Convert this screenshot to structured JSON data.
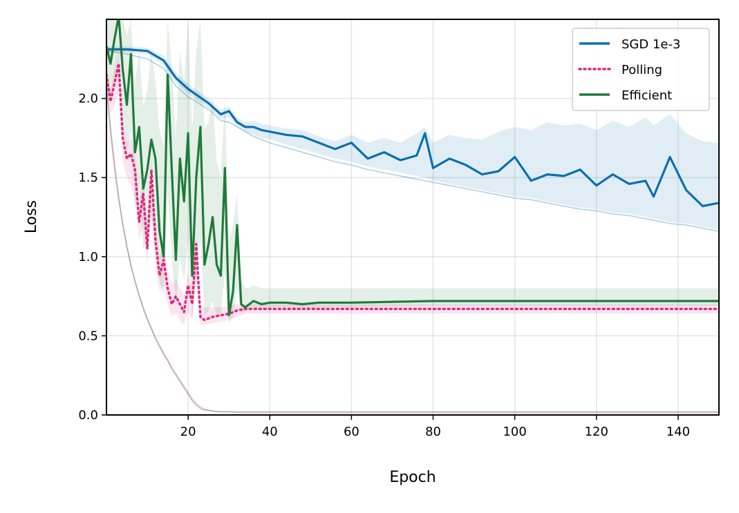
{
  "chart_data": {
    "type": "line",
    "title": "",
    "xlabel": "Epoch",
    "ylabel": "Loss",
    "xlim": [
      0,
      150
    ],
    "ylim": [
      0,
      2.5
    ],
    "xticks": [
      20,
      40,
      60,
      80,
      100,
      120,
      140
    ],
    "yticks": [
      0.0,
      0.5,
      1.0,
      1.5,
      2.0
    ],
    "xtick_labels": [
      "20",
      "40",
      "60",
      "80",
      "100",
      "120",
      "140"
    ],
    "ytick_labels": [
      "0.0",
      "0.5",
      "1.0",
      "1.5",
      "2.0"
    ],
    "grid": true,
    "legend_position": "top-right",
    "series": [
      {
        "name": "SGD 1e-3",
        "color": "#0a6fb0",
        "style": "solid",
        "x": [
          0,
          5,
          10,
          14,
          17,
          20,
          25,
          28,
          30,
          32,
          34,
          36,
          38,
          40,
          44,
          48,
          52,
          56,
          60,
          64,
          68,
          72,
          76,
          78,
          80,
          84,
          88,
          92,
          96,
          100,
          104,
          108,
          112,
          116,
          120,
          124,
          128,
          132,
          134,
          138,
          142,
          146,
          150
        ],
        "y": [
          2.31,
          2.31,
          2.3,
          2.24,
          2.13,
          2.06,
          1.97,
          1.9,
          1.92,
          1.85,
          1.82,
          1.82,
          1.8,
          1.79,
          1.77,
          1.76,
          1.72,
          1.68,
          1.72,
          1.62,
          1.66,
          1.61,
          1.64,
          1.78,
          1.56,
          1.62,
          1.58,
          1.52,
          1.54,
          1.63,
          1.48,
          1.52,
          1.51,
          1.55,
          1.45,
          1.52,
          1.46,
          1.48,
          1.38,
          1.63,
          1.42,
          1.32,
          1.34
        ],
        "band_upper": [
          2.33,
          2.33,
          2.32,
          2.27,
          2.16,
          2.09,
          2.0,
          1.93,
          1.95,
          1.88,
          1.85,
          1.86,
          1.84,
          1.83,
          1.81,
          1.8,
          1.76,
          1.73,
          1.77,
          1.72,
          1.75,
          1.72,
          1.78,
          1.82,
          1.72,
          1.77,
          1.75,
          1.74,
          1.79,
          1.82,
          1.8,
          1.85,
          1.83,
          1.84,
          1.8,
          1.86,
          1.82,
          1.88,
          1.83,
          1.9,
          1.78,
          1.73,
          1.72
        ],
        "band_lower": [
          2.29,
          2.29,
          2.28,
          2.21,
          2.1,
          2.03,
          1.94,
          1.87,
          1.88,
          1.82,
          1.79,
          1.77,
          1.75,
          1.74,
          1.71,
          1.68,
          1.65,
          1.62,
          1.6,
          1.57,
          1.55,
          1.53,
          1.51,
          1.5,
          1.48,
          1.46,
          1.44,
          1.42,
          1.4,
          1.38,
          1.37,
          1.35,
          1.33,
          1.31,
          1.3,
          1.28,
          1.27,
          1.25,
          1.24,
          1.22,
          1.21,
          1.19,
          1.17
        ],
        "lower_curve": [
          2.3,
          2.28,
          2.25,
          2.19,
          2.08,
          2.01,
          1.93,
          1.86,
          1.85,
          1.82,
          1.79,
          1.76,
          1.74,
          1.72,
          1.69,
          1.66,
          1.63,
          1.6,
          1.58,
          1.55,
          1.53,
          1.51,
          1.49,
          1.48,
          1.47,
          1.45,
          1.43,
          1.41,
          1.39,
          1.37,
          1.36,
          1.34,
          1.32,
          1.3,
          1.29,
          1.27,
          1.26,
          1.24,
          1.23,
          1.21,
          1.2,
          1.18,
          1.16
        ]
      },
      {
        "name": "Polling",
        "color": "#e0267f",
        "style": "dotted",
        "x": [
          0,
          1,
          2,
          3,
          4,
          5,
          6,
          7,
          8,
          9,
          10,
          11,
          12,
          13,
          14,
          15,
          16,
          17,
          18,
          19,
          20,
          21,
          22,
          23,
          24,
          26,
          28,
          30,
          32,
          34,
          36,
          40,
          50,
          60,
          80,
          100,
          120,
          150
        ],
        "y": [
          2.15,
          1.98,
          2.1,
          2.22,
          1.75,
          1.62,
          1.65,
          1.55,
          1.22,
          1.4,
          1.05,
          1.55,
          1.1,
          0.88,
          0.98,
          0.8,
          0.7,
          0.75,
          0.7,
          0.65,
          0.82,
          0.7,
          1.08,
          0.62,
          0.6,
          0.62,
          0.63,
          0.64,
          0.66,
          0.67,
          0.67,
          0.67,
          0.67,
          0.67,
          0.67,
          0.67,
          0.67,
          0.67
        ],
        "band_upper": [
          2.2,
          2.05,
          2.2,
          2.3,
          1.85,
          1.72,
          1.75,
          1.65,
          1.35,
          1.5,
          1.2,
          1.62,
          1.25,
          1.0,
          1.08,
          0.92,
          0.82,
          0.86,
          0.8,
          0.76,
          0.9,
          0.8,
          1.12,
          0.7,
          0.68,
          0.68,
          0.68,
          0.69,
          0.7,
          0.7,
          0.7,
          0.7,
          0.7,
          0.7,
          0.7,
          0.7,
          0.7,
          0.7
        ],
        "band_lower": [
          2.05,
          1.9,
          1.95,
          2.05,
          1.6,
          1.5,
          1.45,
          1.35,
          1.1,
          1.2,
          0.95,
          1.3,
          0.95,
          0.78,
          0.82,
          0.7,
          0.62,
          0.64,
          0.6,
          0.57,
          0.65,
          0.6,
          0.85,
          0.57,
          0.57,
          0.58,
          0.59,
          0.6,
          0.62,
          0.64,
          0.64,
          0.64,
          0.64,
          0.64,
          0.64,
          0.64,
          0.64,
          0.64
        ],
        "lower_curve": [
          2.05,
          1.78,
          1.55,
          1.36,
          1.2,
          1.06,
          0.94,
          0.84,
          0.75,
          0.67,
          0.6,
          0.54,
          0.48,
          0.43,
          0.38,
          0.34,
          0.29,
          0.25,
          0.21,
          0.17,
          0.13,
          0.09,
          0.06,
          0.04,
          0.03,
          0.025,
          0.02,
          0.02,
          0.015,
          0.015,
          0.015,
          0.015,
          0.015,
          0.015,
          0.015,
          0.015,
          0.015,
          0.015
        ]
      },
      {
        "name": "Efficient",
        "color": "#1f7a3a",
        "style": "solid",
        "x": [
          0,
          1,
          2,
          3,
          4,
          5,
          6,
          7,
          8,
          9,
          10,
          11,
          12,
          13,
          14,
          15,
          16,
          17,
          18,
          19,
          20,
          21,
          22,
          23,
          24,
          25,
          26,
          27,
          28,
          29,
          30,
          31,
          32,
          33,
          34,
          35,
          36,
          38,
          40,
          44,
          48,
          52,
          60,
          80,
          100,
          120,
          150
        ],
        "y": [
          2.33,
          2.22,
          2.38,
          2.52,
          2.18,
          1.96,
          2.28,
          1.66,
          1.82,
          1.43,
          1.55,
          1.74,
          1.62,
          1.16,
          1.0,
          2.15,
          1.55,
          0.98,
          1.62,
          1.35,
          1.78,
          0.88,
          1.5,
          1.82,
          0.95,
          1.08,
          1.25,
          0.95,
          0.88,
          1.56,
          0.63,
          0.78,
          1.2,
          0.7,
          0.68,
          0.7,
          0.72,
          0.7,
          0.71,
          0.71,
          0.7,
          0.71,
          0.71,
          0.72,
          0.72,
          0.72,
          0.72
        ],
        "band_upper": [
          2.5,
          2.5,
          2.5,
          2.5,
          2.5,
          2.4,
          2.5,
          2.1,
          2.3,
          1.95,
          2.05,
          2.3,
          2.1,
          1.8,
          1.7,
          2.5,
          2.2,
          1.75,
          2.3,
          2.1,
          2.5,
          1.8,
          2.3,
          2.5,
          1.8,
          1.85,
          2.0,
          1.6,
          1.5,
          2.0,
          1.1,
          1.2,
          1.4,
          0.85,
          0.8,
          0.8,
          0.82,
          0.8,
          0.8,
          0.8,
          0.8,
          0.8,
          0.8,
          0.8,
          0.8,
          0.8,
          0.8
        ],
        "band_lower": [
          2.1,
          2.0,
          2.1,
          2.2,
          1.85,
          1.65,
          1.8,
          1.3,
          1.4,
          1.05,
          1.1,
          1.25,
          1.1,
          0.85,
          0.75,
          1.4,
          1.0,
          0.7,
          1.0,
          0.85,
          1.1,
          0.6,
          0.9,
          1.1,
          0.62,
          0.66,
          0.72,
          0.63,
          0.62,
          0.9,
          0.58,
          0.62,
          0.8,
          0.64,
          0.65,
          0.67,
          0.68,
          0.67,
          0.68,
          0.68,
          0.67,
          0.68,
          0.68,
          0.69,
          0.69,
          0.69,
          0.69
        ],
        "lower_curve": [
          2.1,
          1.82,
          1.58,
          1.38,
          1.21,
          1.07,
          0.95,
          0.85,
          0.76,
          0.68,
          0.61,
          0.55,
          0.49,
          0.44,
          0.39,
          0.35,
          0.3,
          0.26,
          0.22,
          0.18,
          0.14,
          0.1,
          0.07,
          0.05,
          0.035,
          0.03,
          0.025,
          0.02,
          0.02,
          0.02,
          0.02,
          0.02,
          0.02,
          0.02,
          0.02,
          0.02,
          0.02,
          0.02,
          0.02,
          0.02,
          0.02,
          0.02,
          0.02,
          0.02,
          0.02,
          0.02,
          0.02
        ]
      }
    ]
  }
}
